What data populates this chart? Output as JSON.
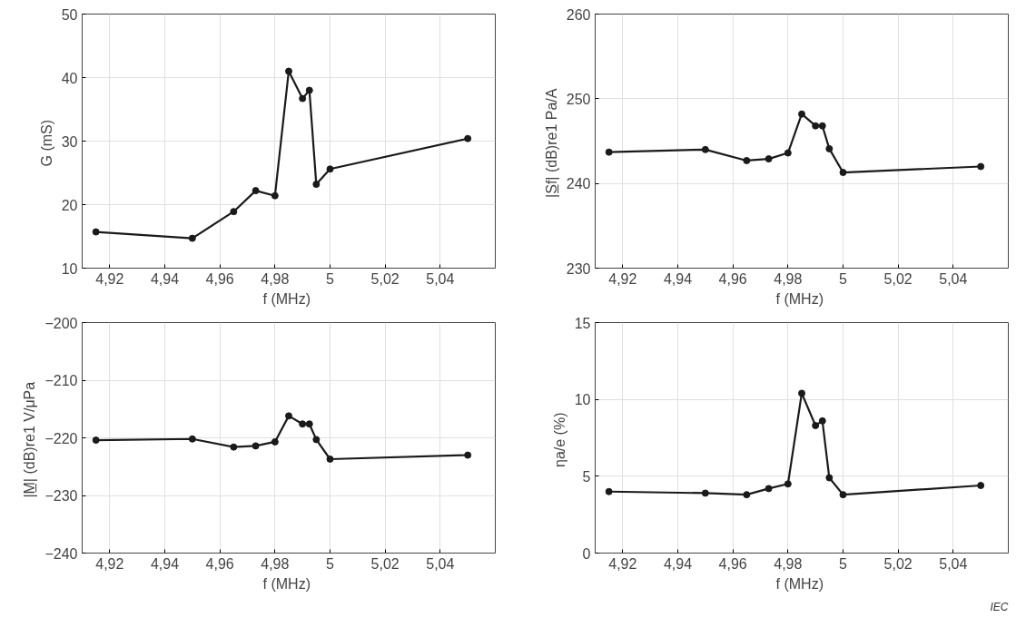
{
  "chart_data": [
    {
      "type": "line",
      "xlabel": "f  (MHz)",
      "ylabel": "G  (mS)",
      "x": [
        4.915,
        4.95,
        4.965,
        4.973,
        4.98,
        4.985,
        4.99,
        4.9925,
        4.995,
        5.0,
        5.05
      ],
      "series": [
        {
          "color": "#1a1a1a",
          "values": [
            15.7,
            14.7,
            18.9,
            22.2,
            21.4,
            41,
            36.7,
            38,
            23.2,
            25.6,
            30.4
          ]
        }
      ],
      "xlim": [
        4.91,
        5.06
      ],
      "xticks": [
        {
          "value": 4.92,
          "label": "4,92"
        },
        {
          "value": 4.94,
          "label": "4,94"
        },
        {
          "value": 4.96,
          "label": "4,96"
        },
        {
          "value": 4.98,
          "label": "4,98"
        },
        {
          "value": 5,
          "label": "5"
        },
        {
          "value": 5.02,
          "label": "5,02"
        },
        {
          "value": 5.04,
          "label": "5,04"
        }
      ],
      "ylim": [
        10,
        50
      ],
      "yticks": [
        10,
        20,
        30,
        40,
        50
      ],
      "grid": true,
      "marker": "circle",
      "line_style": "solid"
    },
    {
      "type": "line",
      "xlabel": "f  (MHz)",
      "ylabel": "|S̲f|  (dB)re1 Pa/A",
      "x": [
        4.915,
        4.95,
        4.965,
        4.973,
        4.98,
        4.985,
        4.99,
        4.9925,
        4.995,
        5.0,
        5.05
      ],
      "series": [
        {
          "color": "#1a1a1a",
          "values": [
            243.7,
            244.0,
            242.7,
            242.9,
            243.6,
            248.2,
            246.8,
            246.8,
            244.1,
            241.3,
            242.0
          ]
        }
      ],
      "xlim": [
        4.91,
        5.06
      ],
      "xticks": [
        {
          "value": 4.92,
          "label": "4,92"
        },
        {
          "value": 4.94,
          "label": "4,94"
        },
        {
          "value": 4.96,
          "label": "4,96"
        },
        {
          "value": 4.98,
          "label": "4,98"
        },
        {
          "value": 5,
          "label": "5"
        },
        {
          "value": 5.02,
          "label": "5,02"
        },
        {
          "value": 5.04,
          "label": "5,04"
        }
      ],
      "ylim": [
        230,
        260
      ],
      "yticks": [
        230,
        240,
        250,
        260
      ],
      "grid": true,
      "marker": "circle",
      "line_style": "solid"
    },
    {
      "type": "line",
      "xlabel": "f  (MHz)",
      "ylabel": "|M̲|  (dB)re1 V/μPa",
      "x": [
        4.915,
        4.95,
        4.965,
        4.973,
        4.98,
        4.985,
        4.99,
        4.9925,
        4.995,
        5.0,
        5.05
      ],
      "series": [
        {
          "color": "#1a1a1a",
          "values": [
            -220.4,
            -220.2,
            -221.6,
            -221.4,
            -220.7,
            -216.2,
            -217.6,
            -217.6,
            -220.3,
            -223.7,
            -223.0
          ]
        }
      ],
      "xlim": [
        4.91,
        5.06
      ],
      "xticks": [
        {
          "value": 4.92,
          "label": "4,92"
        },
        {
          "value": 4.94,
          "label": "4,94"
        },
        {
          "value": 4.96,
          "label": "4,96"
        },
        {
          "value": 4.98,
          "label": "4,98"
        },
        {
          "value": 5,
          "label": "5"
        },
        {
          "value": 5.02,
          "label": "5,02"
        },
        {
          "value": 5.04,
          "label": "5,04"
        }
      ],
      "ylim": [
        -240,
        -200
      ],
      "yticks": [
        {
          "value": -240,
          "label": "−240"
        },
        {
          "value": -230,
          "label": "−230"
        },
        {
          "value": -220,
          "label": "−220"
        },
        {
          "value": -210,
          "label": "−210"
        },
        {
          "value": -200,
          "label": "−200"
        }
      ],
      "grid": true,
      "marker": "circle",
      "line_style": "solid"
    },
    {
      "type": "line",
      "xlabel": "f  (MHz)",
      "ylabel": "ηa/e  (%)",
      "x": [
        4.915,
        4.95,
        4.965,
        4.973,
        4.98,
        4.985,
        4.99,
        4.9925,
        4.995,
        5.0,
        5.05
      ],
      "series": [
        {
          "color": "#1a1a1a",
          "values": [
            4.0,
            3.9,
            3.8,
            4.2,
            4.5,
            10.4,
            8.3,
            8.6,
            4.9,
            3.8,
            4.4
          ]
        }
      ],
      "xlim": [
        4.91,
        5.06
      ],
      "xticks": [
        {
          "value": 4.92,
          "label": "4,92"
        },
        {
          "value": 4.94,
          "label": "4,94"
        },
        {
          "value": 4.96,
          "label": "4,96"
        },
        {
          "value": 4.98,
          "label": "4,98"
        },
        {
          "value": 5,
          "label": "5"
        },
        {
          "value": 5.02,
          "label": "5,02"
        },
        {
          "value": 5.04,
          "label": "5,04"
        }
      ],
      "ylim": [
        0,
        15
      ],
      "yticks": [
        0,
        5,
        10,
        15
      ],
      "grid": true,
      "marker": "circle",
      "line_style": "solid",
      "annotations": [
        "IEC"
      ]
    }
  ]
}
